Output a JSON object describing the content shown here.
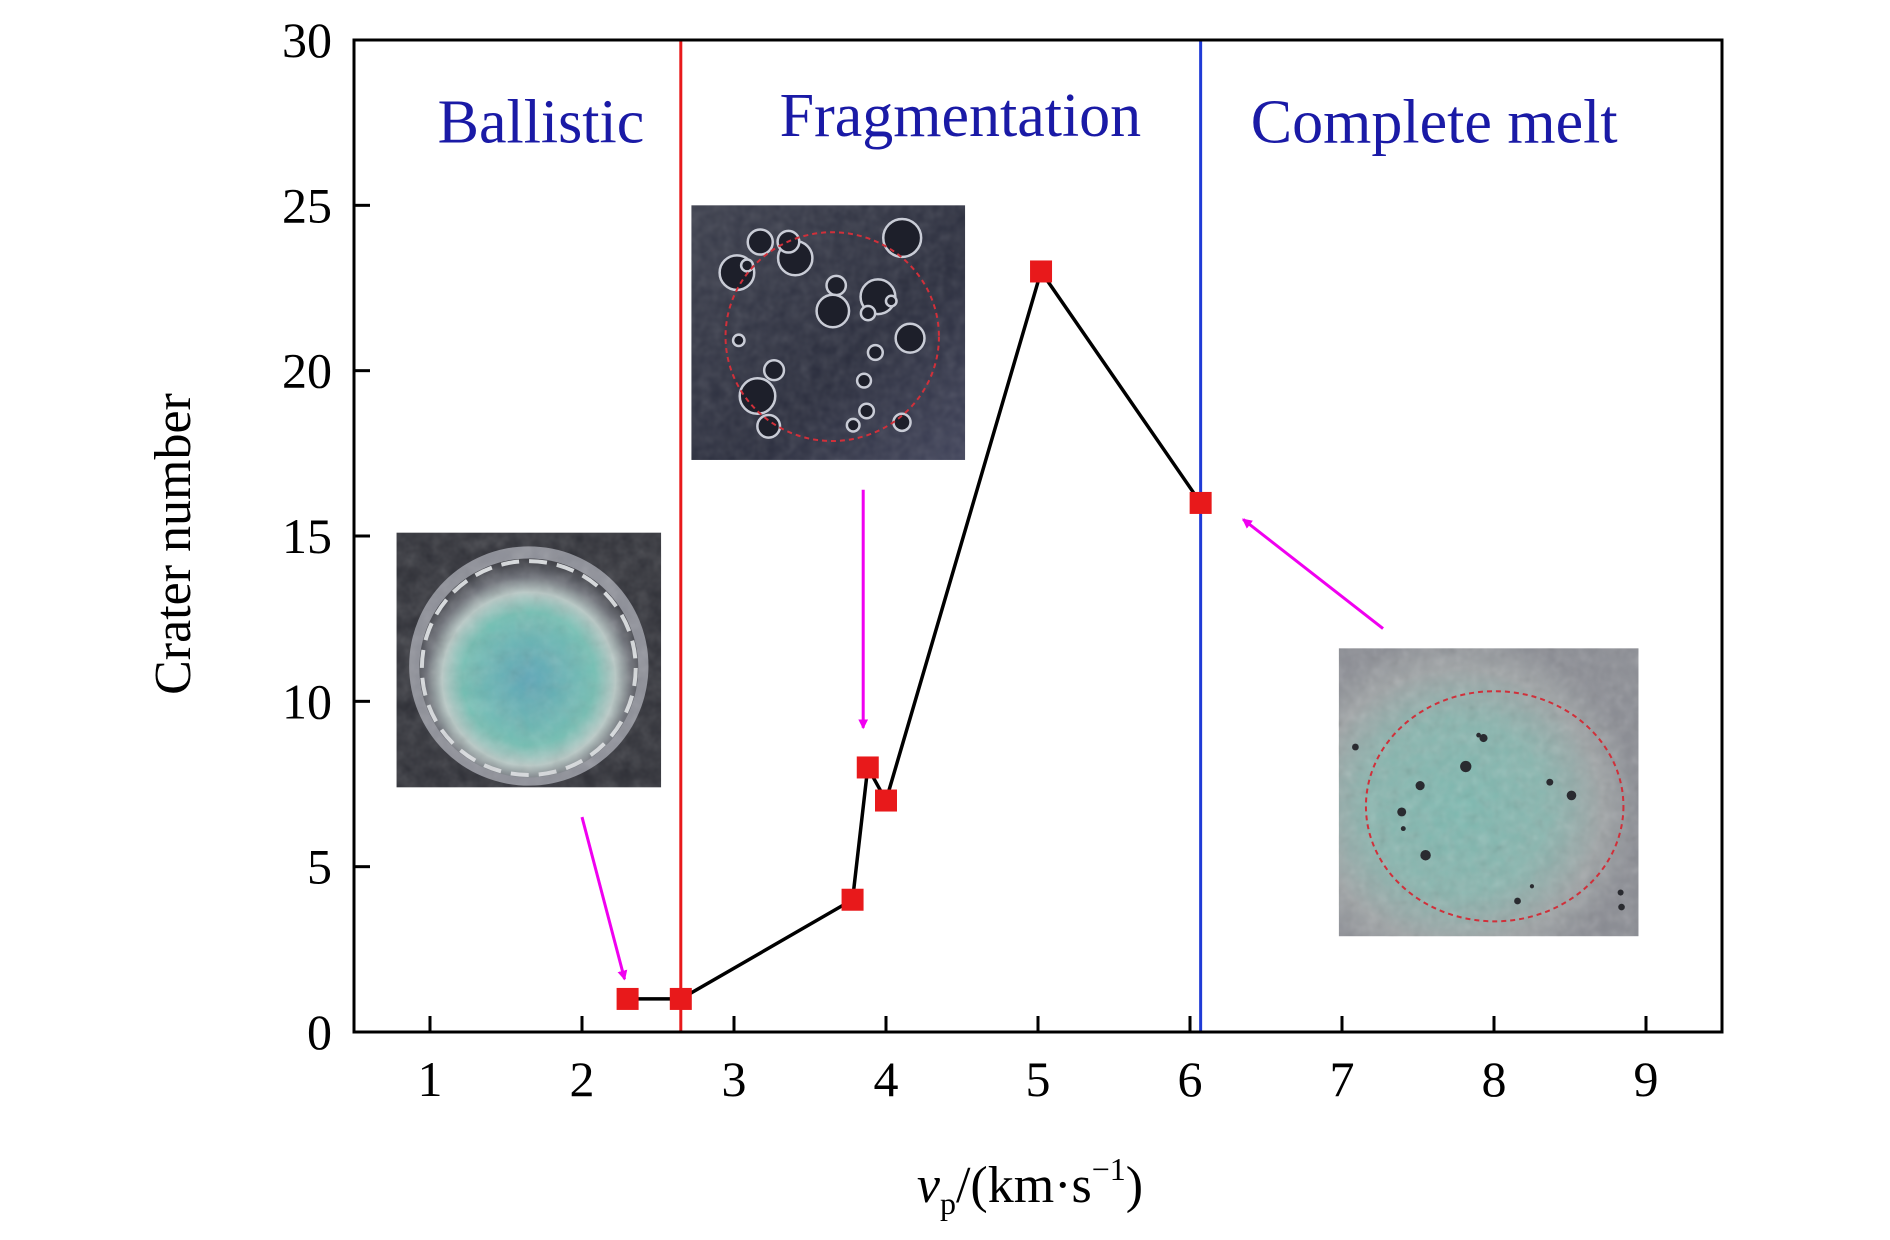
{
  "chart_data": {
    "type": "line",
    "title": "",
    "xlabel": "v_p/(km·s⁻¹)",
    "xlabel_parts": {
      "symbol": "v",
      "subscript": "p",
      "unit_open": "/(km·s",
      "exponent": "−1",
      "unit_close": ")"
    },
    "ylabel": "Crater number",
    "xlim": [
      0.5,
      9.5
    ],
    "ylim": [
      0,
      30
    ],
    "x_ticks": [
      1,
      2,
      3,
      4,
      5,
      6,
      7,
      8,
      9
    ],
    "y_ticks": [
      0,
      5,
      10,
      15,
      20,
      25,
      30
    ],
    "grid": false,
    "series": [
      {
        "x": [
          2.3,
          2.65,
          3.78,
          3.88,
          4.0,
          5.02,
          6.07
        ],
        "y": [
          1,
          1,
          4,
          8,
          7,
          23,
          16
        ],
        "color": "#000000",
        "marker": "square",
        "marker_color": "#e8191b"
      }
    ],
    "vlines": [
      {
        "x": 2.65,
        "color": "#e8191b"
      },
      {
        "x": 6.07,
        "color": "#1f3bd6"
      }
    ],
    "region_labels": [
      {
        "text": "Ballistic",
        "x": 1.05,
        "y": 27.5
      },
      {
        "text": "Fragmentation",
        "x": 3.3,
        "y": 27.7
      },
      {
        "text": "Complete melt",
        "x": 6.4,
        "y": 27.5
      }
    ],
    "insets": [
      {
        "name": "crater-image-ballistic",
        "x0": 0.78,
        "x1": 2.52,
        "y0": 7.4,
        "y1": 15.1,
        "style": "ballistic"
      },
      {
        "name": "crater-image-fragmentation",
        "x0": 2.72,
        "x1": 4.52,
        "y0": 17.3,
        "y1": 25.0,
        "style": "fragmentation"
      },
      {
        "name": "crater-image-melt",
        "x0": 6.98,
        "x1": 8.95,
        "y0": 2.9,
        "y1": 11.6,
        "style": "melt"
      }
    ],
    "arrows": [
      {
        "from": [
          2.0,
          6.5
        ],
        "to": [
          2.28,
          1.6
        ]
      },
      {
        "from": [
          3.85,
          16.4
        ],
        "to": [
          3.85,
          9.2
        ]
      },
      {
        "from": [
          7.27,
          12.2
        ],
        "to": [
          6.35,
          15.5
        ]
      }
    ],
    "colors": {
      "arrow": "#f000f0",
      "region_text": "#1a1aa6",
      "frame": "#000000"
    }
  }
}
